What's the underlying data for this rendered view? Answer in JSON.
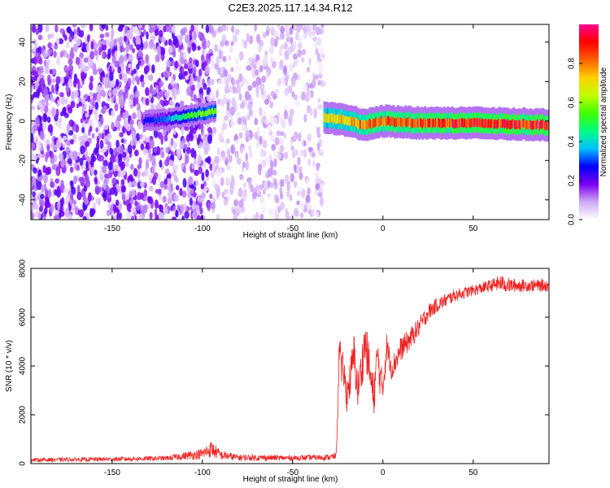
{
  "title": "C2E3.2025.117.14.34.R12",
  "chart_data": [
    {
      "type": "heatmap",
      "xlabel": "Height of straight line (km)",
      "ylabel": "Frequency (Hz)",
      "xlim": [
        -195,
        92
      ],
      "ylim": [
        -50,
        49
      ],
      "xticks": [
        -150,
        -100,
        -50,
        0,
        50
      ],
      "yticks": [
        -40,
        -20,
        0,
        20,
        40
      ],
      "grid": false,
      "colorbar": {
        "label": "Normalized spectral amplitude",
        "range": [
          0,
          1
        ],
        "ticks": [
          0.0,
          0.2,
          0.4,
          0.6,
          0.8
        ],
        "colors": [
          "#ffffff",
          "#cfa8f5",
          "#7a00f0",
          "#0000ff",
          "#00c0ff",
          "#00ff80",
          "#40ff00",
          "#c0ff00",
          "#ffd000",
          "#ff6000",
          "#ff0000",
          "#ff0090"
        ]
      },
      "regions": [
        {
          "name": "noise",
          "x": [
            -195,
            -95
          ],
          "freq_range": [
            -50,
            49
          ],
          "amplitude": 0.12
        },
        {
          "name": "faint-noise",
          "x": [
            -95,
            -33
          ],
          "freq_range": [
            -50,
            49
          ],
          "amplitude": 0.06
        },
        {
          "name": "early-signal",
          "x": [
            -133,
            -93
          ],
          "center_hz": [
            0,
            1,
            3,
            5
          ],
          "amplitude": [
            0.25,
            0.35,
            0.55,
            0.6
          ]
        },
        {
          "name": "main-signal",
          "x": [
            -33,
            92
          ],
          "center_hz": [
            2,
            0,
            -2,
            0,
            -1,
            -1,
            -2
          ],
          "x_points": [
            -33,
            -20,
            -10,
            0,
            20,
            50,
            92
          ],
          "amplitude": [
            0.7,
            0.75,
            0.8,
            0.85,
            0.88,
            0.9,
            0.92
          ]
        }
      ]
    },
    {
      "type": "line",
      "xlabel": "Height of straight line (km)",
      "ylabel": "SNR (10 * v/v)",
      "xlim": [
        -195,
        92
      ],
      "ylim": [
        0,
        8000
      ],
      "xticks": [
        -150,
        -100,
        -50,
        0,
        50
      ],
      "yticks": [
        0,
        2000,
        4000,
        6000,
        8000
      ],
      "grid": false,
      "series": [
        {
          "color": "#ee2222",
          "x": [
            -195,
            -150,
            -120,
            -100,
            -95,
            -90,
            -80,
            -50,
            -30,
            -26,
            -25,
            -24,
            -23,
            -22,
            -21,
            -20,
            -18,
            -16,
            -14,
            -12,
            -10,
            -8,
            -6,
            -5,
            -3,
            -1,
            0,
            2,
            5,
            10,
            15,
            20,
            25,
            30,
            40,
            50,
            60,
            65,
            70,
            80,
            92
          ],
          "y": [
            150,
            180,
            220,
            400,
            600,
            350,
            250,
            230,
            260,
            300,
            2000,
            5500,
            3500,
            4000,
            3300,
            2800,
            3500,
            4500,
            3000,
            3800,
            5000,
            4200,
            3000,
            2800,
            4500,
            3200,
            3200,
            4800,
            3900,
            4700,
            5100,
            5600,
            6200,
            6500,
            6900,
            7100,
            7300,
            7400,
            7300,
            7300,
            7300
          ],
          "noise": [
            80,
            90,
            100,
            220,
            350,
            200,
            130,
            110,
            120,
            140,
            300,
            800,
            700,
            700,
            700,
            700,
            800,
            900,
            800,
            900,
            1000,
            900,
            900,
            900,
            800,
            800,
            800,
            600,
            500,
            500,
            450,
            400,
            350,
            300,
            250,
            230,
            250,
            350,
            300,
            250,
            250
          ]
        }
      ]
    }
  ]
}
